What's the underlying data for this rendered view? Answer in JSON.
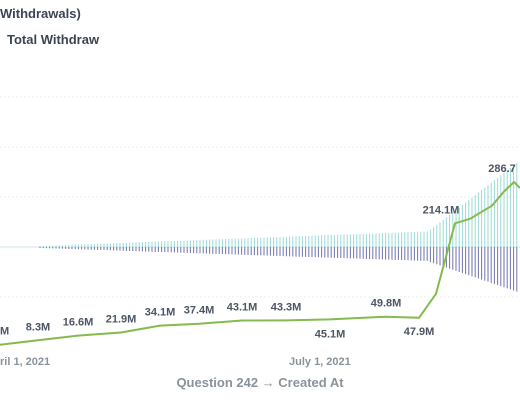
{
  "chart_data": {
    "type": "line",
    "title": "Withdrawals)",
    "xlabel": "Question 242 → Created At",
    "ylabel": "",
    "legend": [
      {
        "name": "Total Withdraw",
        "color": "#509ee3"
      }
    ],
    "x_ticks": [
      "ril 1, 2021",
      "July 1, 2021"
    ],
    "colors": {
      "line": "#84bb4c",
      "positive_bars": "#98d9d9",
      "negative_bars": "#7172ad",
      "grid": "#ececec",
      "baseline": "#cfe6e6"
    },
    "line_points": [
      {
        "label": "M",
        "value": 0.5
      },
      {
        "label": "8.3M",
        "value": 8.3
      },
      {
        "label": "16.6M",
        "value": 16.6
      },
      {
        "label": "21.9M",
        "value": 21.9
      },
      {
        "label": "34.1M",
        "value": 34.1
      },
      {
        "label": "37.4M",
        "value": 37.4
      },
      {
        "label": "43.1M",
        "value": 43.1
      },
      {
        "label": "43.3M",
        "value": 43.3
      },
      {
        "label": "45.1M",
        "value": 45.1
      },
      {
        "label": "49.8M",
        "value": 49.8
      },
      {
        "label": "47.9M",
        "value": 47.9
      },
      {
        "label": "214.1M",
        "value": 214.1
      },
      {
        "label": "286.7",
        "value": 286.7
      }
    ]
  }
}
